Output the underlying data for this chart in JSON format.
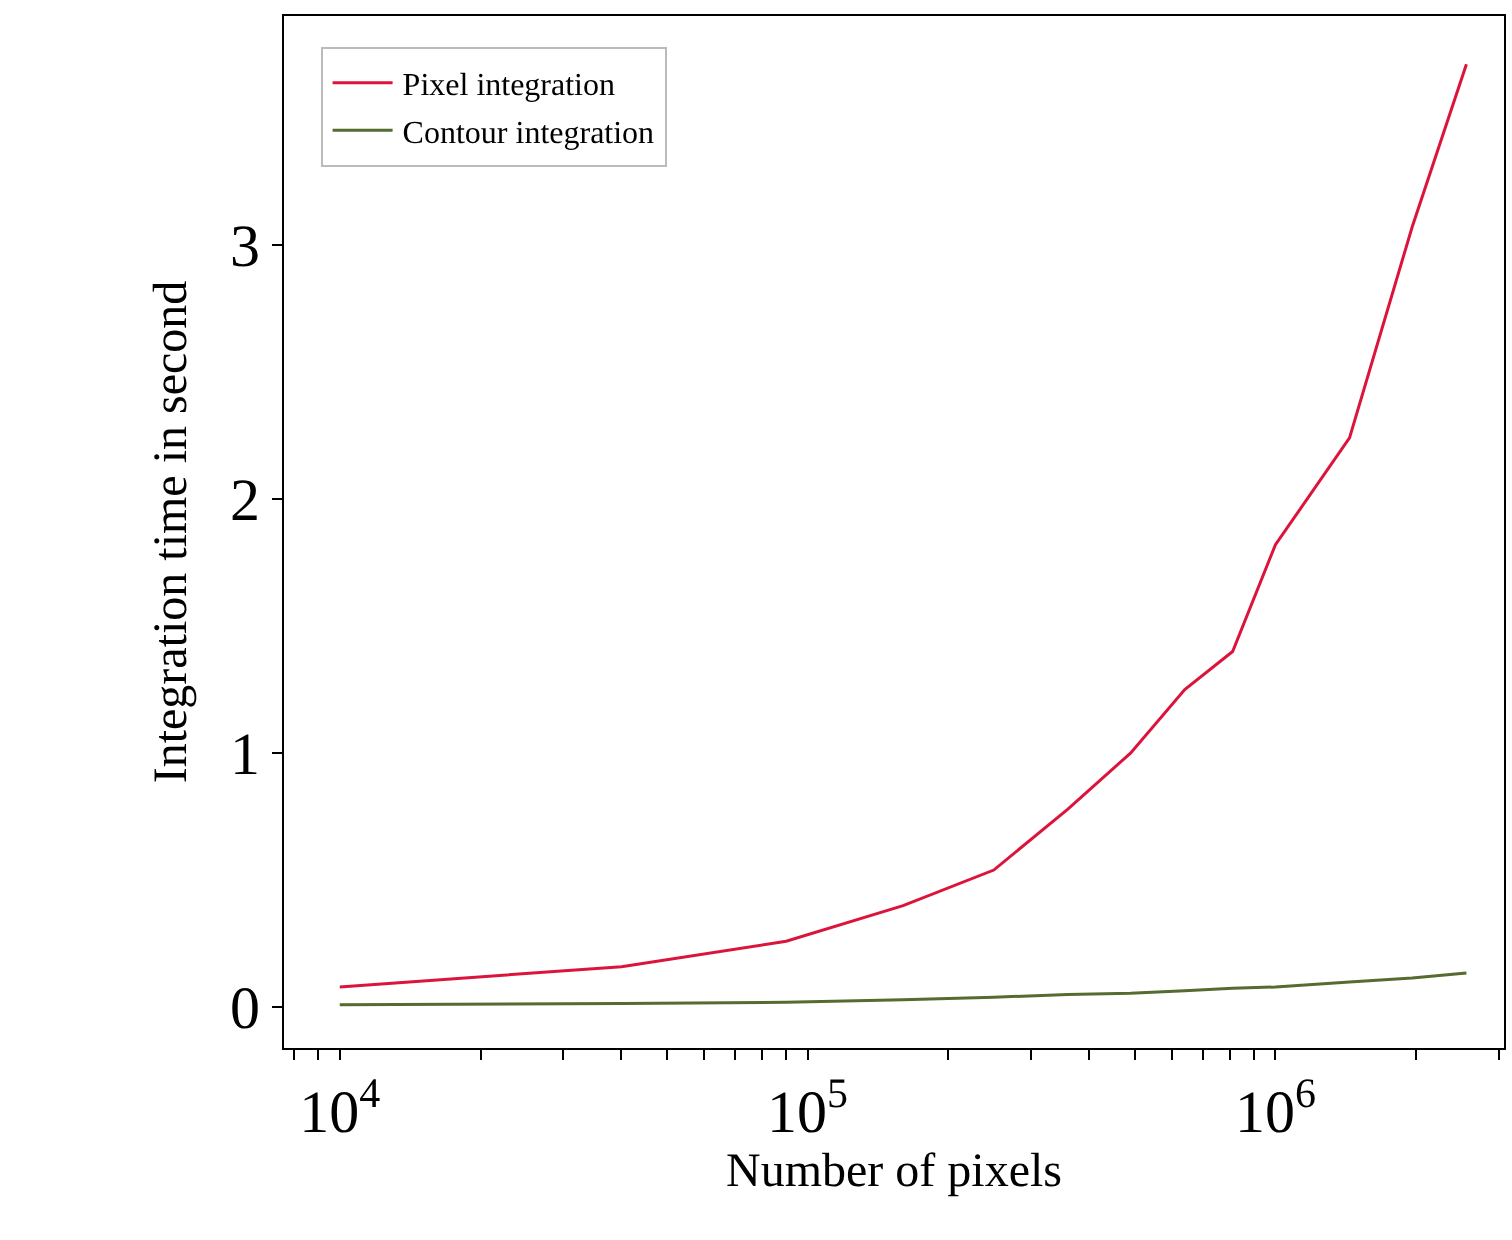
{
  "chart_data": {
    "type": "line",
    "xlabel": "Number of pixels",
    "ylabel": "Integration time in second",
    "x": [
      10000,
      40000,
      90000,
      160000,
      250000,
      360000,
      490000,
      640000,
      810000,
      1000000,
      1440000,
      1960000,
      2560000
    ],
    "series": [
      {
        "name": "Pixel integration",
        "color": "#dc143c",
        "values": [
          0.08,
          0.16,
          0.26,
          0.4,
          0.54,
          0.78,
          1.0,
          1.25,
          1.4,
          1.82,
          2.24,
          3.07,
          3.71
        ]
      },
      {
        "name": "Contour integration",
        "color": "#556b2f",
        "values": [
          0.01,
          0.015,
          0.02,
          0.03,
          0.04,
          0.05,
          0.055,
          0.065,
          0.075,
          0.08,
          0.1,
          0.115,
          0.135
        ]
      }
    ],
    "log": "x",
    "xlim": [
      7600,
      3080000
    ],
    "ylim": [
      -0.16,
      3.9
    ],
    "xticks": [
      {
        "value": 8000,
        "label": null
      },
      {
        "value": 9000,
        "label": null
      },
      {
        "value": 10000,
        "label": "10$^{4}$"
      },
      {
        "value": 20000,
        "label": null
      },
      {
        "value": 30000,
        "label": null
      },
      {
        "value": 40000,
        "label": null
      },
      {
        "value": 50000,
        "label": null
      },
      {
        "value": 60000,
        "label": null
      },
      {
        "value": 70000,
        "label": null
      },
      {
        "value": 80000,
        "label": null
      },
      {
        "value": 90000,
        "label": null
      },
      {
        "value": 100000,
        "label": "10$^{5}$"
      },
      {
        "value": 200000,
        "label": null
      },
      {
        "value": 300000,
        "label": null
      },
      {
        "value": 400000,
        "label": null
      },
      {
        "value": 500000,
        "label": null
      },
      {
        "value": 600000,
        "label": null
      },
      {
        "value": 700000,
        "label": null
      },
      {
        "value": 800000,
        "label": null
      },
      {
        "value": 900000,
        "label": null
      },
      {
        "value": 1000000,
        "label": "10$^{6}$"
      },
      {
        "value": 2000000,
        "label": null
      },
      {
        "value": 3000000,
        "label": null
      }
    ],
    "yticks": [
      0,
      1,
      2,
      3
    ],
    "legend": "top left",
    "marker": "none",
    "line_style": "solid"
  }
}
